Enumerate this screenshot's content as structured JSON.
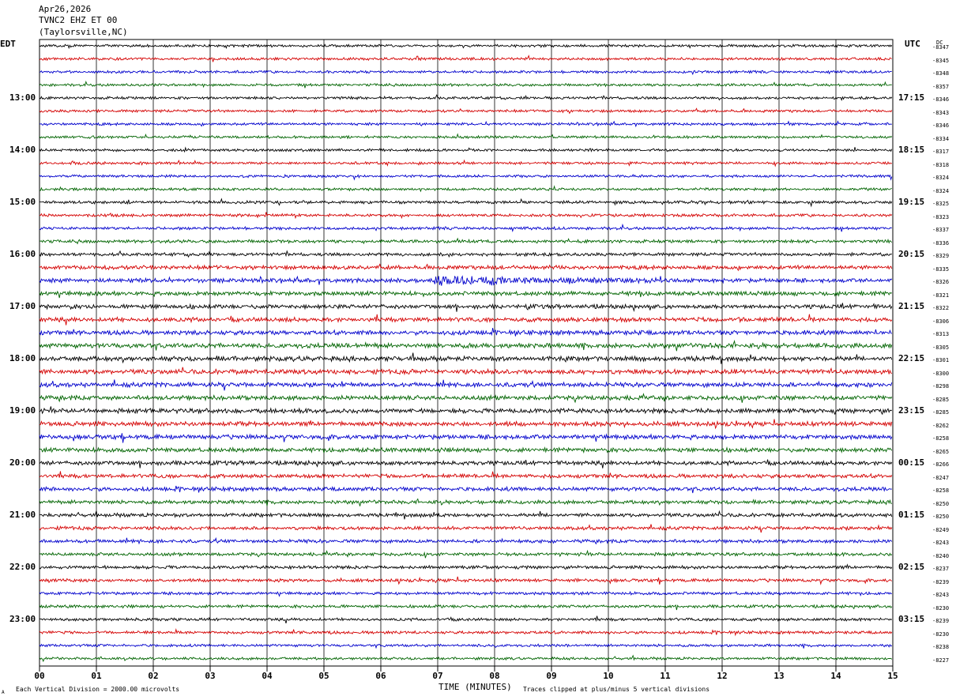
{
  "header": {
    "date": "Apr26,2026",
    "station": "TVNC2 EHZ ET 00",
    "location": "(Taylorsville,NC)"
  },
  "left_tz": "EDT",
  "right_tz": "UTC",
  "dc_label": "DC",
  "footer": {
    "scale_note": "Each Vertical Division = 2000.00 microvolts",
    "xlabel": "TIME (MINUTES)",
    "clip_note": "Traces clipped at plus/minus 5 vertical divisions",
    "corner_mark": "A"
  },
  "chart_data": {
    "type": "line",
    "title": "TVNC2 EHZ ET 00 (Taylorsville,NC) Apr26,2026",
    "xlabel": "TIME (MINUTES)",
    "xlim": [
      0,
      15
    ],
    "x_ticks": [
      "00",
      "01",
      "02",
      "03",
      "04",
      "05",
      "06",
      "07",
      "08",
      "09",
      "10",
      "11",
      "12",
      "13",
      "14",
      "15"
    ],
    "grid": true,
    "trace_colors": [
      "#000000",
      "#d40000",
      "#0000cc",
      "#006400"
    ],
    "row_minutes": 15,
    "left_hour_labels": [
      "13:00",
      "14:00",
      "15:00",
      "16:00",
      "17:00",
      "18:00",
      "19:00",
      "20:00",
      "21:00",
      "22:00",
      "23:00"
    ],
    "right_hour_labels": [
      "17:15",
      "18:15",
      "19:15",
      "20:15",
      "21:15",
      "22:15",
      "23:15",
      "00:15",
      "01:15",
      "02:15",
      "03:15"
    ],
    "dc_offsets": [
      -8347,
      -8345,
      -8348,
      -8357,
      -8346,
      -8343,
      -8346,
      -8334,
      -8317,
      -8318,
      -8324,
      -8324,
      -8325,
      -8323,
      -8337,
      -8336,
      -8329,
      -8335,
      -8326,
      -8321,
      -8322,
      -8306,
      -8313,
      -8305,
      -8301,
      -8300,
      -8298,
      -8285,
      -8285,
      -8262,
      -8258,
      -8265,
      -8266,
      -8247,
      -8258,
      -8250,
      -8250,
      -8249,
      -8243,
      -8240,
      -8237,
      -8239,
      -8243,
      -8230,
      -8239,
      -8230,
      -8238,
      -8227
    ],
    "noise_level": [
      1.0,
      1.0,
      1.0,
      1.0,
      1.0,
      1.0,
      1.0,
      1.0,
      1.0,
      1.0,
      1.0,
      1.0,
      1.1,
      1.1,
      1.1,
      1.2,
      1.2,
      1.5,
      1.6,
      1.6,
      1.6,
      1.7,
      1.7,
      1.8,
      1.8,
      1.8,
      1.7,
      1.7,
      1.7,
      1.7,
      1.7,
      1.6,
      1.6,
      1.5,
      1.5,
      1.4,
      1.4,
      1.3,
      1.3,
      1.2,
      1.2,
      1.2,
      1.1,
      1.1,
      1.1,
      1.1,
      1.0,
      1.0
    ],
    "events": [
      {
        "row": 18,
        "minute": 6.93,
        "magnitude": 4.0,
        "duration_min": 4.3
      }
    ]
  }
}
